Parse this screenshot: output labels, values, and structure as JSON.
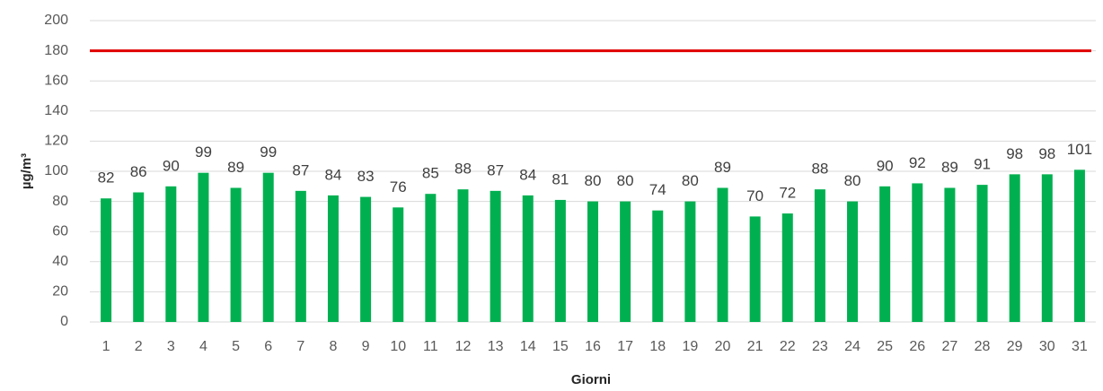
{
  "chart_data": {
    "type": "bar",
    "x_label": "Giorni",
    "y_label": "µg/m³",
    "categories": [
      "1",
      "2",
      "3",
      "4",
      "5",
      "6",
      "7",
      "8",
      "9",
      "10",
      "11",
      "12",
      "13",
      "14",
      "15",
      "16",
      "17",
      "18",
      "19",
      "20",
      "21",
      "22",
      "23",
      "24",
      "25",
      "26",
      "27",
      "28",
      "29",
      "30",
      "31"
    ],
    "values": [
      82,
      86,
      90,
      99,
      89,
      99,
      87,
      84,
      83,
      76,
      85,
      88,
      87,
      84,
      81,
      80,
      80,
      74,
      80,
      89,
      70,
      72,
      88,
      80,
      90,
      92,
      89,
      91,
      98,
      98,
      101
    ],
    "color": "#00b050",
    "threshold": {
      "value": 180,
      "color": "#e00000"
    },
    "ylim": [
      0,
      200
    ],
    "yticks": [
      0,
      20,
      40,
      60,
      80,
      100,
      120,
      140,
      160,
      180,
      200
    ],
    "grid": true
  }
}
